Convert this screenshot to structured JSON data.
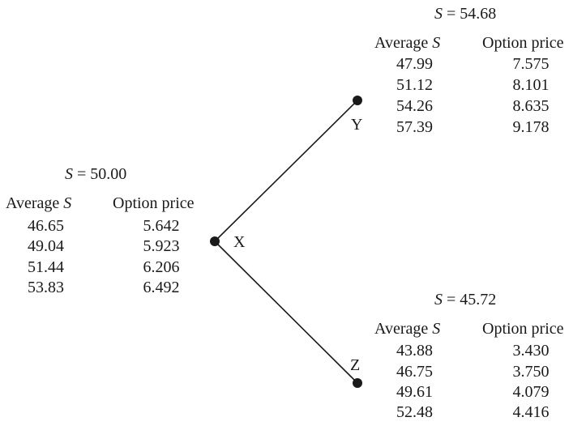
{
  "nodes": {
    "X": {
      "label": "X",
      "price_var": "S",
      "price_eq": " = 50.00",
      "col_average": "Average ",
      "col_average_var": "S",
      "col_option": "Option price",
      "rows": [
        {
          "average": "46.65",
          "option": "5.642"
        },
        {
          "average": "49.04",
          "option": "5.923"
        },
        {
          "average": "51.44",
          "option": "6.206"
        },
        {
          "average": "53.83",
          "option": "6.492"
        }
      ]
    },
    "Y": {
      "label": "Y",
      "price_var": "S",
      "price_eq": " = 54.68",
      "col_average": "Average ",
      "col_average_var": "S",
      "col_option": "Option price",
      "rows": [
        {
          "average": "47.99",
          "option": "7.575"
        },
        {
          "average": "51.12",
          "option": "8.101"
        },
        {
          "average": "54.26",
          "option": "8.635"
        },
        {
          "average": "57.39",
          "option": "9.178"
        }
      ]
    },
    "Z": {
      "label": "Z",
      "price_var": "S",
      "price_eq": " = 45.72",
      "col_average": "Average ",
      "col_average_var": "S",
      "col_option": "Option price",
      "rows": [
        {
          "average": "43.88",
          "option": "3.430"
        },
        {
          "average": "46.75",
          "option": "3.750"
        },
        {
          "average": "49.61",
          "option": "4.079"
        },
        {
          "average": "52.48",
          "option": "4.416"
        }
      ]
    }
  },
  "colors": {
    "ink": "#1a1a1a",
    "background": "#ffffff"
  }
}
